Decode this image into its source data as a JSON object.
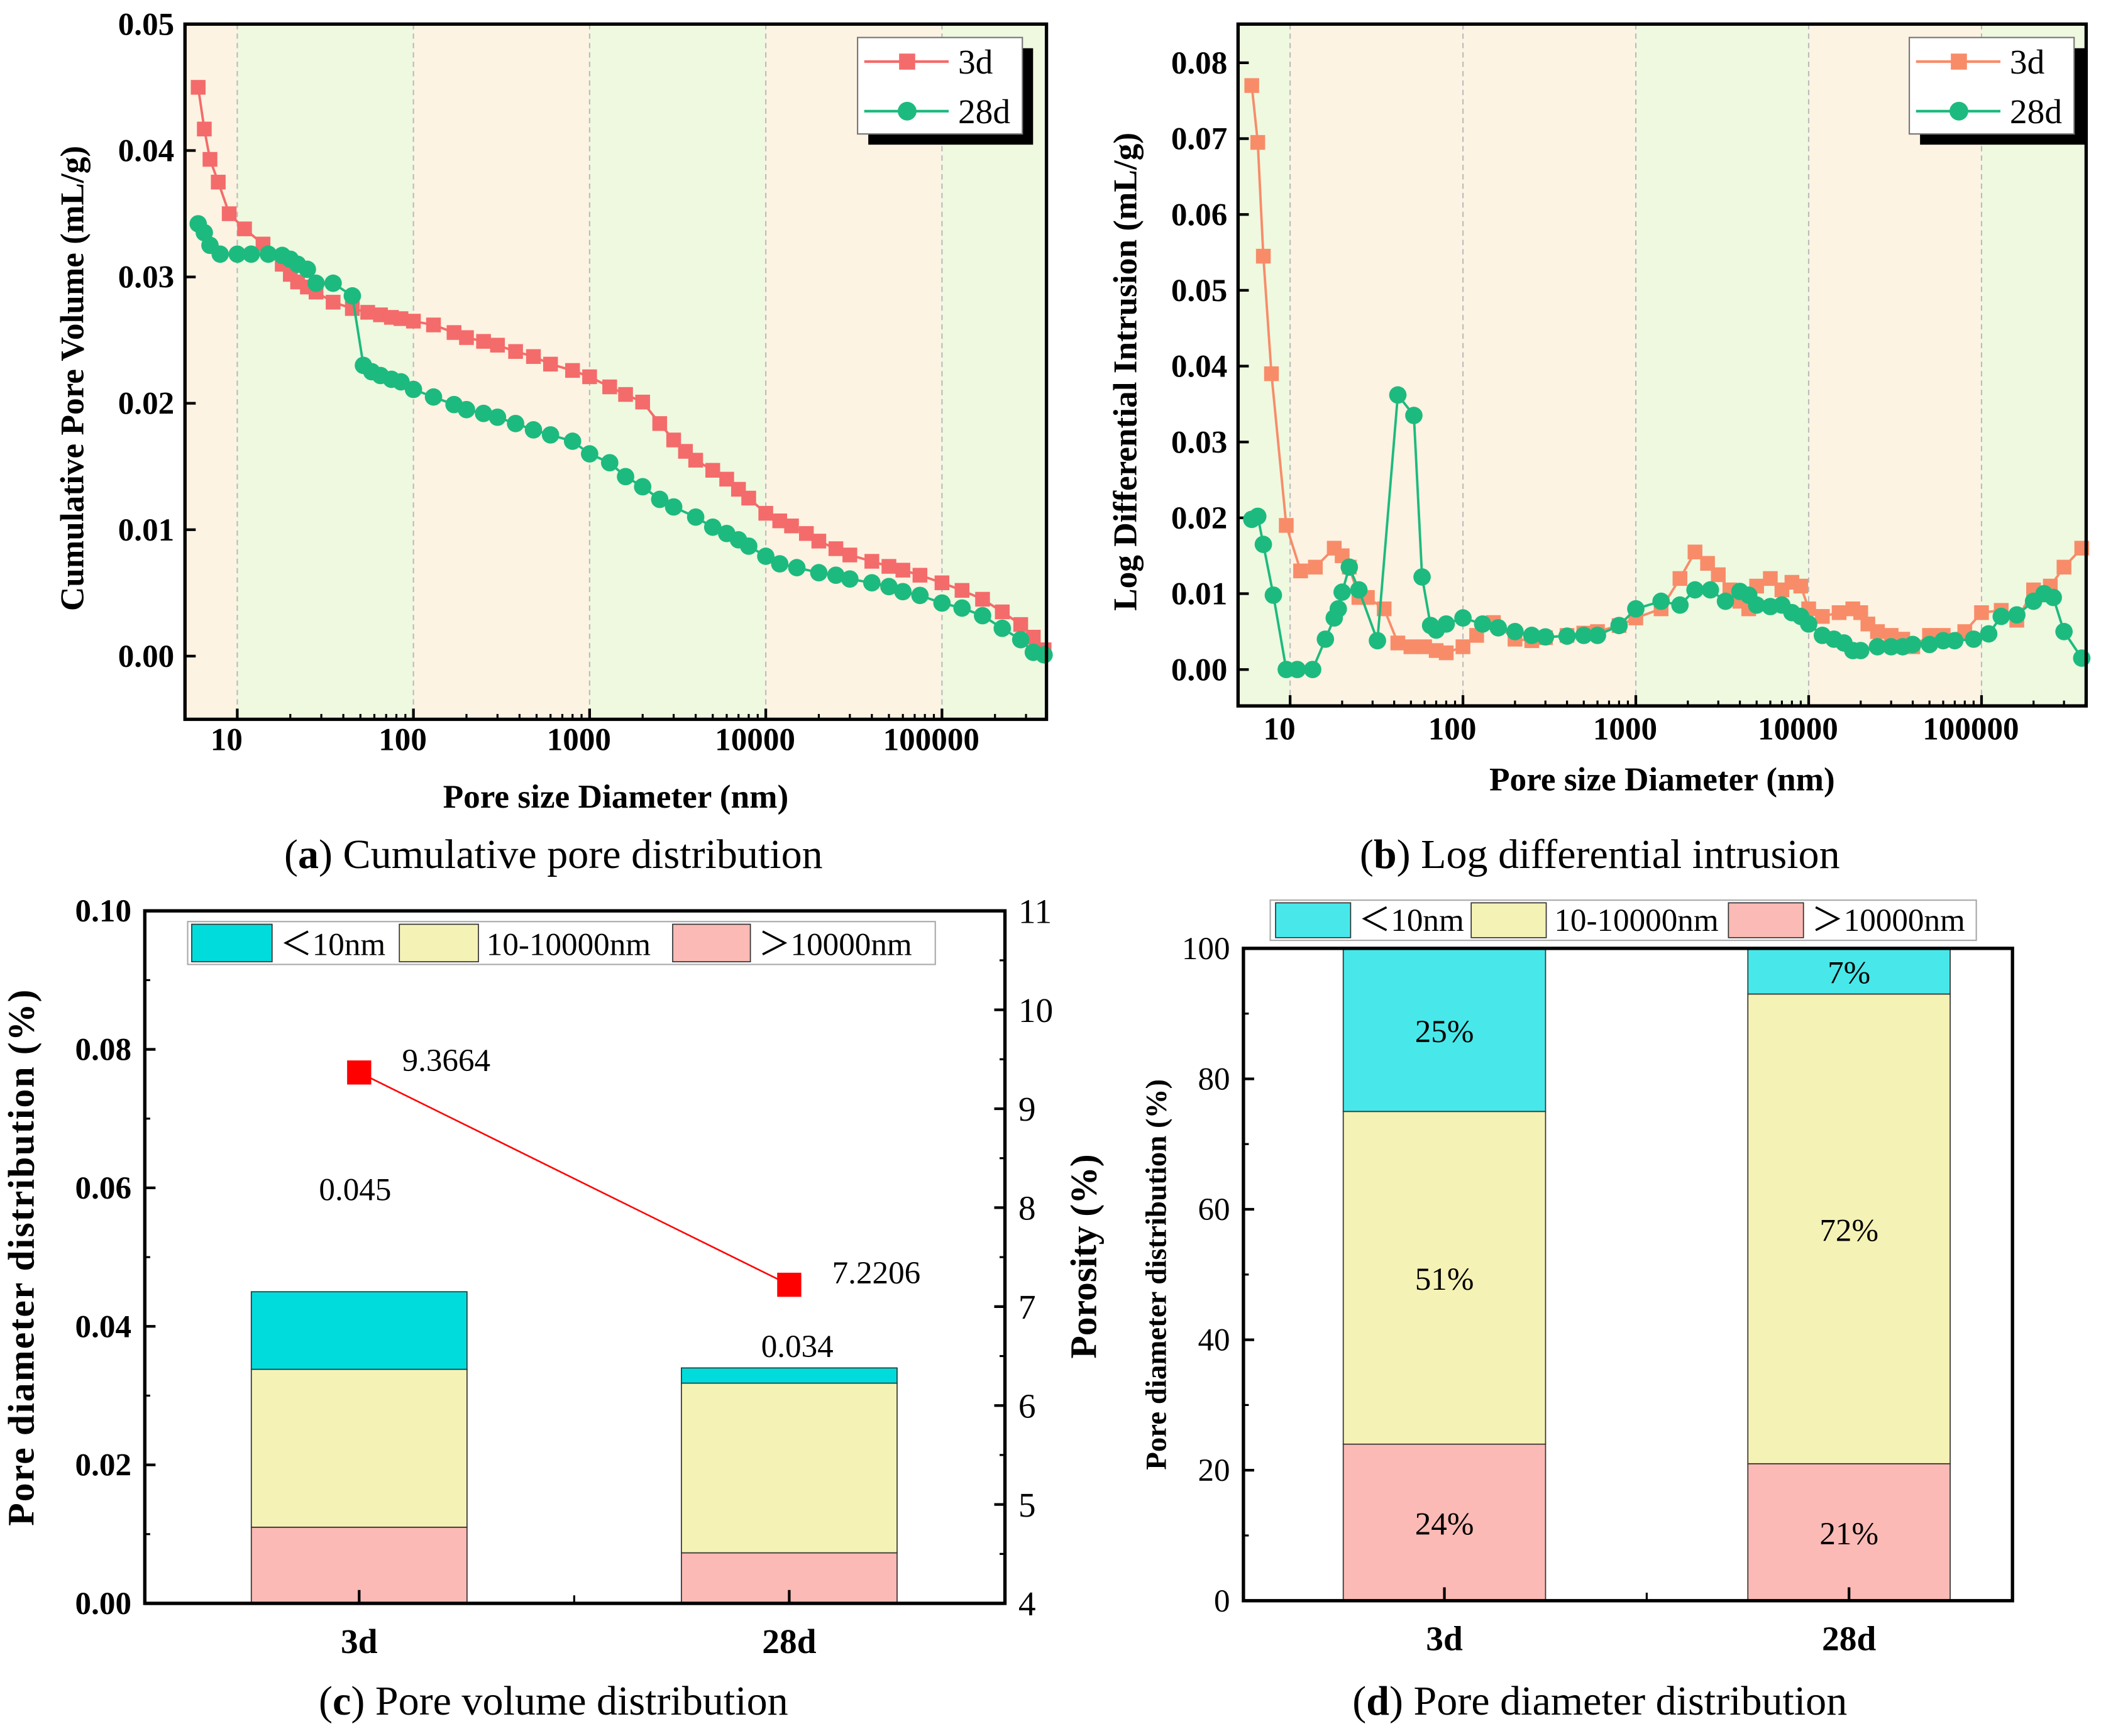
{
  "colors": {
    "band_orange": "#FDF3E2",
    "band_green": "#EEF9E0",
    "a_3d": "#F46B6B",
    "b_3d": "#F88C69",
    "c28": "#1DBA7F",
    "lt10_c": "#00DCDC",
    "lt10_d": "#48E8EA",
    "mid": "#F5F2B6",
    "gt": "#FBBAB5",
    "porosity": "#FF0000",
    "teal": "#0E6F6F"
  },
  "chart_data": [
    {
      "id": "a",
      "type": "line",
      "caption_letter": "a",
      "caption_text": " Cumulative pore distribution",
      "xlabel": "Pore size Diameter (nm)",
      "ylabel": "Cumulative Pore Volume  (mL/g)",
      "xscale": "log",
      "xlim": [
        5.05,
        392000
      ],
      "ylim": [
        -0.005,
        0.05
      ],
      "xticks": [
        10,
        100,
        1000,
        10000,
        100000
      ],
      "xtick_labels": [
        "10",
        "100",
        "1000",
        "10000",
        "100000"
      ],
      "yticks": [
        0,
        0.01,
        0.02,
        0.03,
        0.04,
        0.05
      ],
      "ytick_labels": [
        "0.00",
        "0.01",
        "0.02",
        "0.03",
        "0.04",
        "0.05"
      ],
      "legend": "top-right",
      "bands": [
        {
          "from": 5.05,
          "to": 10,
          "color": "orange"
        },
        {
          "from": 10,
          "to": 100,
          "color": "green"
        },
        {
          "from": 100,
          "to": 1000,
          "color": "orange"
        },
        {
          "from": 1000,
          "to": 10000,
          "color": "green"
        },
        {
          "from": 10000,
          "to": 100000,
          "color": "orange"
        },
        {
          "from": 100000,
          "to": 392000,
          "color": "green"
        }
      ],
      "series": [
        {
          "name": "3d",
          "marker": "square",
          "x": [
            6,
            6.5,
            7,
            7.8,
            9,
            11,
            14,
            18,
            20,
            22,
            25,
            28,
            35,
            45,
            55,
            65,
            75,
            85,
            100,
            130,
            170,
            200,
            250,
            300,
            380,
            480,
            600,
            800,
            1000,
            1300,
            1600,
            2000,
            2500,
            3000,
            3500,
            4000,
            5000,
            6000,
            7000,
            8000,
            10000,
            12000,
            14000,
            17000,
            20000,
            25000,
            30000,
            40000,
            50000,
            60000,
            75000,
            100000,
            130000,
            170000,
            220000,
            280000,
            330000,
            380000
          ],
          "y": [
            0.045,
            0.0417,
            0.0393,
            0.0375,
            0.035,
            0.0338,
            0.0326,
            0.031,
            0.0302,
            0.0296,
            0.0292,
            0.0288,
            0.028,
            0.0275,
            0.0272,
            0.027,
            0.0268,
            0.0267,
            0.0265,
            0.0262,
            0.0256,
            0.0252,
            0.0249,
            0.0246,
            0.0241,
            0.0237,
            0.0231,
            0.0226,
            0.0221,
            0.0213,
            0.0207,
            0.0201,
            0.0184,
            0.0171,
            0.0162,
            0.0155,
            0.0147,
            0.014,
            0.0132,
            0.0125,
            0.0113,
            0.0107,
            0.0103,
            0.0097,
            0.0091,
            0.0085,
            0.008,
            0.0075,
            0.0071,
            0.0068,
            0.0064,
            0.0058,
            0.0052,
            0.0045,
            0.0035,
            0.0025,
            0.0015,
            0.0005
          ]
        },
        {
          "name": "28d",
          "marker": "circle",
          "x": [
            6,
            6.5,
            7,
            8,
            10,
            12,
            15,
            18,
            20,
            22,
            25,
            28,
            35,
            45,
            52,
            58,
            65,
            75,
            85,
            100,
            130,
            170,
            200,
            250,
            300,
            380,
            480,
            600,
            800,
            1000,
            1300,
            1600,
            2000,
            2500,
            3000,
            4000,
            5000,
            6000,
            7000,
            8000,
            10000,
            12000,
            15000,
            20000,
            25000,
            30000,
            40000,
            50000,
            60000,
            75000,
            100000,
            130000,
            170000,
            220000,
            280000,
            330000,
            380000
          ],
          "y": [
            0.0342,
            0.0335,
            0.0325,
            0.0318,
            0.0318,
            0.0318,
            0.0318,
            0.0317,
            0.0314,
            0.031,
            0.0306,
            0.0295,
            0.0295,
            0.0285,
            0.023,
            0.0225,
            0.0222,
            0.0219,
            0.0217,
            0.0211,
            0.0205,
            0.0199,
            0.0195,
            0.0192,
            0.0189,
            0.0184,
            0.0179,
            0.0175,
            0.017,
            0.016,
            0.0153,
            0.0142,
            0.0134,
            0.0124,
            0.0118,
            0.011,
            0.0102,
            0.0097,
            0.0092,
            0.0087,
            0.0079,
            0.0073,
            0.007,
            0.0066,
            0.0064,
            0.0061,
            0.0058,
            0.0055,
            0.0051,
            0.0048,
            0.0042,
            0.0038,
            0.0032,
            0.0022,
            0.0013,
            0.0003,
            0.0001
          ]
        }
      ]
    },
    {
      "id": "b",
      "type": "line",
      "caption_letter": "b",
      "caption_text": " Log differential intrusion",
      "xlabel": "Pore size Diameter (nm)",
      "ylabel": "Log Differential Intrusion (mL/g)",
      "xscale": "log",
      "xlim": [
        5,
        403000
      ],
      "ylim": [
        -0.0048,
        0.0851
      ],
      "xticks": [
        10,
        100,
        1000,
        10000,
        100000
      ],
      "xtick_labels": [
        "10",
        "100",
        "1000",
        "10000",
        "100000"
      ],
      "yticks": [
        0,
        0.01,
        0.02,
        0.03,
        0.04,
        0.05,
        0.06,
        0.07,
        0.08
      ],
      "ytick_labels": [
        "0.00",
        "0.01",
        "0.02",
        "0.03",
        "0.04",
        "0.05",
        "0.06",
        "0.07",
        "0.08"
      ],
      "legend": "top-right",
      "bands": [
        {
          "from": 5,
          "to": 10,
          "color": "green"
        },
        {
          "from": 10,
          "to": 1000,
          "color": "orange"
        },
        {
          "from": 1000,
          "to": 10000,
          "color": "green"
        },
        {
          "from": 10000,
          "to": 100000,
          "color": "orange"
        },
        {
          "from": 100000,
          "to": 403000,
          "color": "green"
        }
      ],
      "series": [
        {
          "name": "3d",
          "marker": "square",
          "x": [
            6,
            6.5,
            7,
            7.8,
            9.5,
            11.5,
            14,
            18,
            20,
            22,
            25,
            28,
            35,
            42,
            50,
            60,
            70,
            80,
            100,
            120,
            150,
            200,
            250,
            300,
            400,
            500,
            600,
            800,
            1000,
            1400,
            1800,
            2200,
            2600,
            3000,
            3500,
            4000,
            4500,
            5000,
            6000,
            7000,
            8000,
            9000,
            10000,
            12000,
            15000,
            18000,
            20000,
            22000,
            25000,
            30000,
            35000,
            40000,
            50000,
            60000,
            80000,
            100000,
            130000,
            160000,
            200000,
            250000,
            300000,
            380000
          ],
          "y": [
            0.077,
            0.0695,
            0.0545,
            0.039,
            0.019,
            0.013,
            0.0135,
            0.016,
            0.015,
            0.0135,
            0.0095,
            0.0095,
            0.008,
            0.0035,
            0.003,
            0.003,
            0.0025,
            0.0022,
            0.003,
            0.0045,
            0.0062,
            0.004,
            0.0038,
            0.0042,
            0.0045,
            0.0048,
            0.005,
            0.0058,
            0.0068,
            0.008,
            0.012,
            0.0155,
            0.014,
            0.0125,
            0.0105,
            0.009,
            0.008,
            0.011,
            0.012,
            0.0105,
            0.0115,
            0.011,
            0.008,
            0.007,
            0.0075,
            0.008,
            0.0075,
            0.006,
            0.005,
            0.0045,
            0.004,
            0.003,
            0.0045,
            0.0045,
            0.005,
            0.0075,
            0.0078,
            0.0065,
            0.0105,
            0.011,
            0.0135,
            0.016
          ]
        },
        {
          "name": "28d",
          "marker": "circle",
          "x": [
            6,
            6.5,
            7,
            8,
            9.5,
            11,
            13.5,
            16,
            18,
            19,
            20,
            22,
            25,
            32,
            42,
            52,
            58,
            65,
            70,
            80,
            100,
            130,
            160,
            200,
            250,
            300,
            400,
            500,
            600,
            800,
            1000,
            1400,
            1800,
            2200,
            2700,
            3300,
            4000,
            4500,
            5000,
            6000,
            7000,
            8000,
            9000,
            10000,
            12000,
            14000,
            16000,
            18000,
            20000,
            25000,
            30000,
            35000,
            40000,
            50000,
            60000,
            70000,
            90000,
            110000,
            130000,
            160000,
            200000,
            230000,
            260000,
            300000,
            380000
          ],
          "y": [
            0.0198,
            0.0202,
            0.0165,
            0.0098,
            0,
            0,
            0,
            0.004,
            0.0068,
            0.008,
            0.0102,
            0.0135,
            0.0105,
            0.0038,
            0.0362,
            0.0335,
            0.0122,
            0.0058,
            0.0052,
            0.006,
            0.0068,
            0.006,
            0.0055,
            0.005,
            0.0045,
            0.0043,
            0.0044,
            0.0045,
            0.0045,
            0.0058,
            0.008,
            0.009,
            0.0085,
            0.0105,
            0.0105,
            0.009,
            0.0103,
            0.0098,
            0.0085,
            0.0083,
            0.0085,
            0.0075,
            0.007,
            0.006,
            0.0045,
            0.004,
            0.0035,
            0.0025,
            0.0025,
            0.003,
            0.003,
            0.003,
            0.0033,
            0.0033,
            0.0038,
            0.0038,
            0.004,
            0.0047,
            0.007,
            0.0072,
            0.009,
            0.01,
            0.0095,
            0.005,
            0.0015
          ]
        }
      ]
    },
    {
      "id": "c",
      "type": "bar",
      "stacked": true,
      "caption_letter": "c",
      "caption_text": " Pore volume distribution",
      "categories": [
        "3d",
        "28d"
      ],
      "ylabel": "Pore diameter distribution (%)",
      "ylim": [
        0,
        0.1
      ],
      "yticks": [
        0,
        0.02,
        0.04,
        0.06,
        0.08,
        0.1
      ],
      "ytick_labels": [
        "0.00",
        "0.02",
        "0.04",
        "0.06",
        "0.08",
        "0.10"
      ],
      "y2label": "Porosity (%)",
      "y2lim": [
        4,
        11
      ],
      "y2ticks": [
        4,
        5,
        6,
        7,
        8,
        9,
        10,
        11
      ],
      "y2tick_labels": [
        "4",
        "5",
        "6",
        "7",
        "8",
        "9",
        "10",
        "11"
      ],
      "legend": "top",
      "series": [
        {
          "name": ">10000nm",
          "legend_label": "＞10000nm",
          "values": [
            0.011,
            0.0073
          ]
        },
        {
          "name": "10-10000nm",
          "legend_label": "10-10000nm",
          "values": [
            0.0228,
            0.0245
          ]
        },
        {
          "name": "<10nm",
          "legend_label": "＜10nm",
          "values": [
            0.0112,
            0.0022
          ]
        }
      ],
      "totals": [
        0.045,
        0.034
      ],
      "total_labels": [
        "0.045",
        "0.034"
      ],
      "porosity": {
        "name": "Porosity",
        "values": [
          9.3664,
          7.2206
        ],
        "labels": [
          "9.3664",
          "7.2206"
        ]
      }
    },
    {
      "id": "d",
      "type": "bar",
      "stacked": true,
      "caption_letter": "d",
      "caption_text": " Pore diameter distribution",
      "categories": [
        "3d",
        "28d"
      ],
      "ylabel": "Pore diameter distribution (%)",
      "ylim": [
        0,
        100
      ],
      "yticks": [
        0,
        20,
        40,
        60,
        80,
        100
      ],
      "ytick_labels": [
        "0",
        "20",
        "40",
        "60",
        "80",
        "100"
      ],
      "legend": "top",
      "series": [
        {
          "name": ">10000nm",
          "legend_label": "＞10000nm",
          "values": [
            24,
            21
          ],
          "labels": [
            "24%",
            "21%"
          ]
        },
        {
          "name": "10-10000nm",
          "legend_label": "10-10000nm",
          "values": [
            51,
            72
          ],
          "labels": [
            "51%",
            "72%"
          ]
        },
        {
          "name": "<10nm",
          "legend_label": "＜10nm",
          "values": [
            25,
            7
          ],
          "labels": [
            "25%",
            "7%"
          ]
        }
      ]
    }
  ]
}
